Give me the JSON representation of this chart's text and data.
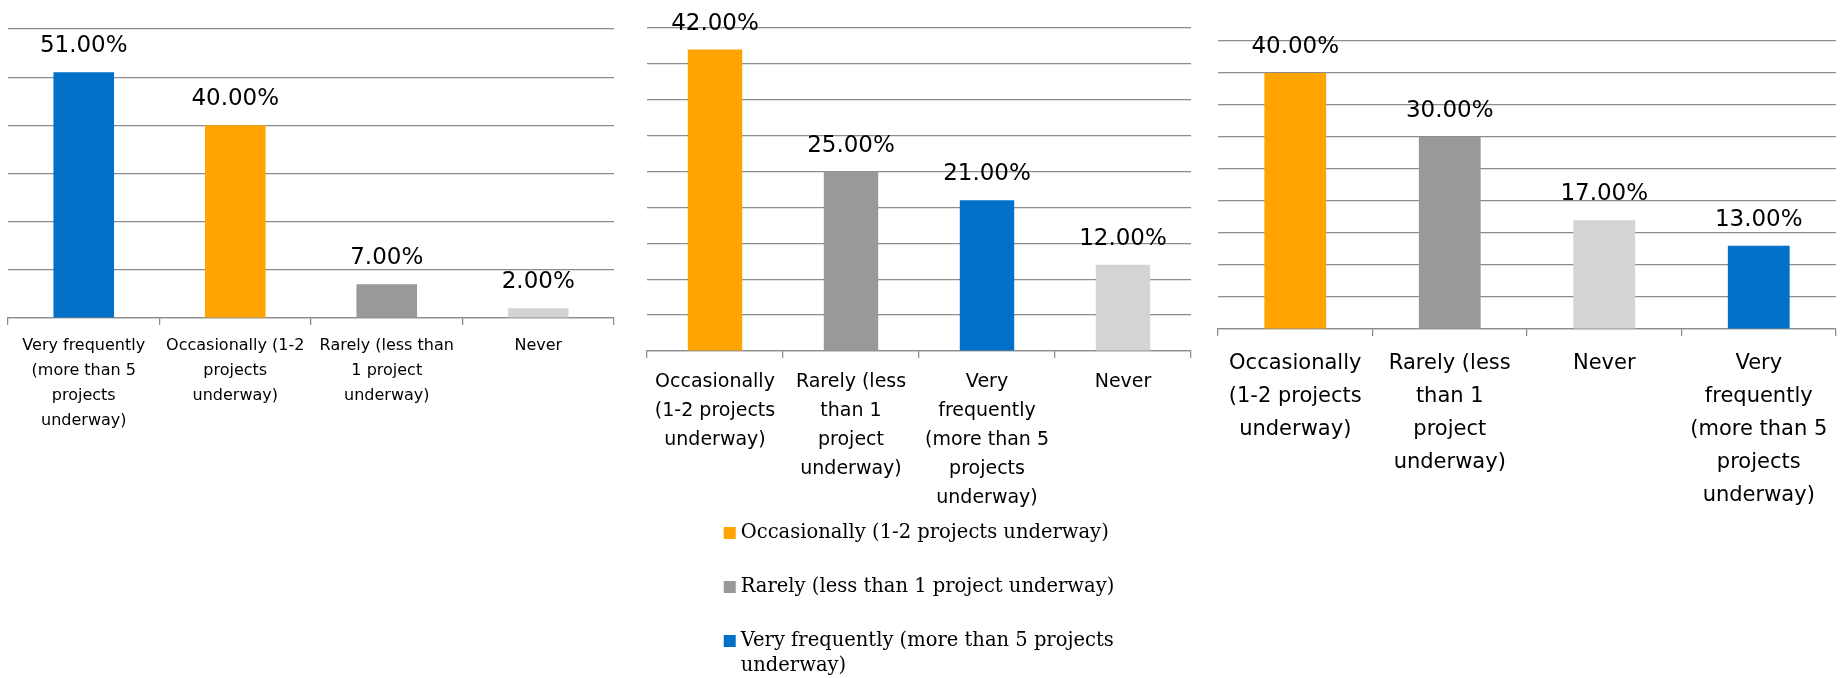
{
  "chart_data": [
    {
      "type": "bar",
      "categories": [
        "Very frequently (more than 5 projects underway)",
        "Occasionally (1-2 projects underway)",
        "Rarely (less than 1 project underway)",
        "Never"
      ],
      "values": [
        51,
        40,
        7,
        2
      ],
      "colors": [
        "#0070c8",
        "#ffa400",
        "#999999",
        "#d4d4d4"
      ],
      "value_labels": [
        "51.00%",
        "40.00%",
        "7.00%",
        "2.00%"
      ],
      "ylim": [
        0,
        60
      ],
      "yticks": [
        {
          "value": 0,
          "label": null
        },
        {
          "value": 10,
          "label": null
        },
        {
          "value": 20,
          "label": null
        },
        {
          "value": 30,
          "label": null
        },
        {
          "value": 40,
          "label": null
        },
        {
          "value": 50,
          "label": null
        },
        {
          "value": 60,
          "label": null
        }
      ],
      "grid": "y",
      "tick_labels": "x"
    },
    {
      "type": "bar",
      "categories": [
        "Occasionally (1-2 projects underway)",
        "Rarely (less than 1 project underway)",
        "Very frequently (more than 5 projects underway)",
        "Never"
      ],
      "series": [
        {
          "name": "Occasionally (1-2 projects underway)",
          "color": "#ffa400",
          "values": [
            42,
            null,
            null,
            null
          ],
          "value_labels": [
            "42.00%",
            null,
            null,
            null
          ]
        },
        {
          "name": "Rarely (less than 1 project underway)",
          "color": "#999999",
          "values": [
            null,
            25,
            null,
            null
          ],
          "value_labels": [
            null,
            "25.00%",
            null,
            null
          ]
        },
        {
          "name": "Very frequently (more than 5 projects underway)",
          "color": "#0070c8",
          "values": [
            null,
            null,
            21,
            null
          ],
          "value_labels": [
            null,
            null,
            "21.00%",
            null
          ]
        },
        {
          "color": "#d4d4d4",
          "values": [
            null,
            null,
            null,
            12
          ],
          "value_labels": [
            null,
            null,
            null,
            "12.00%"
          ]
        }
      ],
      "ylim": [
        0,
        45
      ],
      "yticks": [
        {
          "value": 0,
          "label": null
        },
        {
          "value": 5,
          "label": null
        },
        {
          "value": 10,
          "label": null
        },
        {
          "value": 15,
          "label": null
        },
        {
          "value": 20,
          "label": null
        },
        {
          "value": 25,
          "label": null
        },
        {
          "value": 30,
          "label": null
        },
        {
          "value": 35,
          "label": null
        },
        {
          "value": 40,
          "label": null
        },
        {
          "value": 45,
          "label": null
        }
      ],
      "grid": "y",
      "tick_labels": "x",
      "legend": "bottom"
    },
    {
      "type": "bar",
      "categories": [
        "Occasionally (1-2 projects underway)",
        "Rarely (less than 1 project underway)",
        "Never",
        "Very frequently (more than 5 projects underway)"
      ],
      "values": [
        40,
        30,
        17,
        13
      ],
      "colors": [
        "#ffa400",
        "#999999",
        "#d4d4d4",
        "#0070c8"
      ],
      "value_labels": [
        "40.00%",
        "30.00%",
        "17.00%",
        "13.00%"
      ],
      "ylim": [
        0,
        45
      ],
      "yticks": [
        {
          "value": 0,
          "label": null
        },
        {
          "value": 5,
          "label": null
        },
        {
          "value": 10,
          "label": null
        },
        {
          "value": 15,
          "label": null
        },
        {
          "value": 20,
          "label": null
        },
        {
          "value": 25,
          "label": null
        },
        {
          "value": 30,
          "label": null
        },
        {
          "value": 35,
          "label": null
        },
        {
          "value": 40,
          "label": null
        },
        {
          "value": 45,
          "label": null
        }
      ],
      "grid": "y",
      "tick_labels": "x"
    }
  ]
}
